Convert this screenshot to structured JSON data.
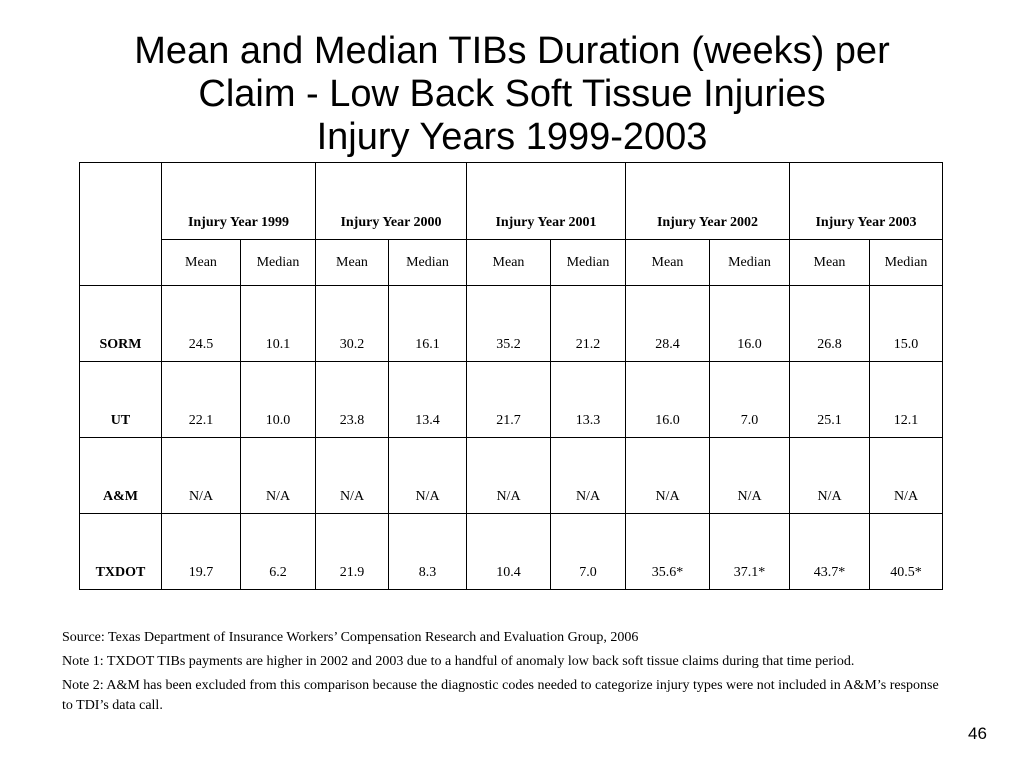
{
  "title": {
    "line1": "Mean and Median TIBs Duration (weeks) per",
    "line2": "Claim - Low Back Soft Tissue Injuries",
    "line3": "Injury Years 1999-2003"
  },
  "table": {
    "years": [
      "Injury Year 1999",
      "Injury Year 2000",
      "Injury Year 2001",
      "Injury Year 2002",
      "Injury Year 2003"
    ],
    "subheaders": [
      "Mean",
      "Median",
      "Mean",
      "Median",
      "Mean",
      "Median",
      "Mean",
      "Median",
      "Mean",
      "Median"
    ],
    "rows": [
      {
        "label": "SORM",
        "cells": [
          "24.5",
          "10.1",
          "30.2",
          "16.1",
          "35.2",
          "21.2",
          "28.4",
          "16.0",
          "26.8",
          "15.0"
        ]
      },
      {
        "label": "UT",
        "cells": [
          "22.1",
          "10.0",
          "23.8",
          "13.4",
          "21.7",
          "13.3",
          "16.0",
          "7.0",
          "25.1",
          "12.1"
        ]
      },
      {
        "label": "A&M",
        "cells": [
          "N/A",
          "N/A",
          "N/A",
          "N/A",
          "N/A",
          "N/A",
          "N/A",
          "N/A",
          "N/A",
          "N/A"
        ]
      },
      {
        "label": "TXDOT",
        "cells": [
          "19.7",
          "6.2",
          "21.9",
          "8.3",
          "10.4",
          "7.0",
          "35.6*",
          "37.1*",
          "43.7*",
          "40.5*"
        ]
      }
    ]
  },
  "notes": {
    "source": "Source: Texas Department of Insurance Workers’ Compensation Research and Evaluation Group, 2006",
    "note1": "Note 1: TXDOT TIBs payments are higher in 2002 and 2003 due to a handful of anomaly low back soft tissue claims during that time period.",
    "note2": "Note 2:  A&M has been excluded from this comparison because the diagnostic codes needed to categorize injury types were not included in A&M’s response to TDI’s data call."
  },
  "page_number": "46"
}
